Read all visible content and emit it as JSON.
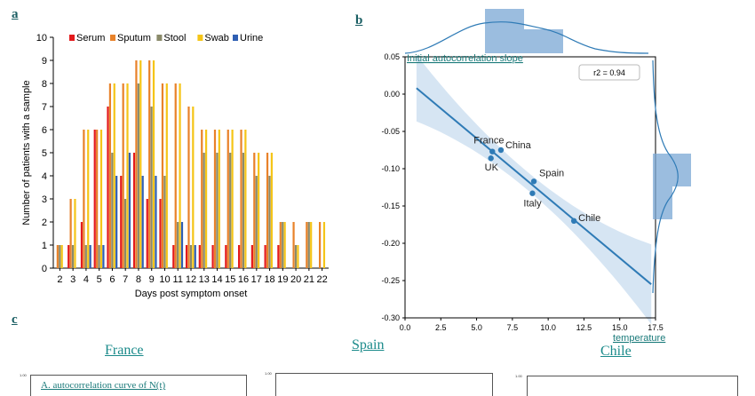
{
  "labels": {
    "a": "a",
    "b": "b",
    "c": "c"
  },
  "panel_c": {
    "countries": [
      "France",
      "Spain",
      "Chile"
    ],
    "subplot_title": "A. autocorrelation curve of N(t)",
    "subplot_tick": "1.00"
  },
  "chart_data": [
    {
      "type": "bar",
      "panel": "a",
      "xlabel": "Days post symptom onset",
      "ylabel": "Number of patients with a sample",
      "ylim": [
        0,
        10
      ],
      "yticks": [
        "0",
        "1",
        "2",
        "3",
        "4",
        "5",
        "6",
        "7",
        "8",
        "9",
        "10"
      ],
      "legend_position": "top",
      "categories": [
        "2",
        "3",
        "4",
        "5",
        "6",
        "7",
        "8",
        "9",
        "10",
        "11",
        "12",
        "13",
        "14",
        "15",
        "16",
        "17",
        "18",
        "19",
        "20",
        "21",
        "22"
      ],
      "series": [
        {
          "name": "Serum",
          "color": "#e31a1c",
          "values": [
            0,
            1,
            2,
            6,
            7,
            4,
            5,
            3,
            3,
            1,
            1,
            1,
            1,
            1,
            1,
            1,
            1,
            1,
            0,
            0,
            0
          ]
        },
        {
          "name": "Sputum",
          "color": "#e8822a",
          "values": [
            1,
            3,
            6,
            6,
            8,
            8,
            9,
            9,
            8,
            8,
            7,
            6,
            6,
            6,
            6,
            5,
            5,
            2,
            2,
            2,
            2
          ]
        },
        {
          "name": "Stool",
          "color": "#8a8a6a",
          "values": [
            1,
            1,
            1,
            1,
            5,
            3,
            8,
            7,
            4,
            2,
            1,
            5,
            5,
            5,
            5,
            4,
            4,
            2,
            1,
            2,
            0
          ]
        },
        {
          "name": "Swab",
          "color": "#f5c518",
          "values": [
            1,
            3,
            6,
            6,
            8,
            8,
            9,
            9,
            8,
            8,
            7,
            6,
            6,
            6,
            6,
            5,
            5,
            2,
            1,
            2,
            2
          ]
        },
        {
          "name": "Urine",
          "color": "#2f5fb3",
          "values": [
            0,
            0,
            1,
            1,
            4,
            5,
            4,
            4,
            0,
            2,
            1,
            0,
            0,
            0,
            0,
            0,
            0,
            0,
            0,
            0,
            0
          ]
        }
      ]
    },
    {
      "type": "scatter",
      "panel": "b",
      "title": "Initial autocorrelation slope",
      "xlabel": "temperature",
      "xlim": [
        0,
        17.5
      ],
      "ylim": [
        -0.3,
        0.05
      ],
      "xticks": [
        "0.0",
        "2.5",
        "5.0",
        "7.5",
        "10.0",
        "12.5",
        "15.0",
        "17.5"
      ],
      "yticks": [
        "0.05",
        "0.00",
        "-0.05",
        "-0.10",
        "-0.15",
        "-0.20",
        "-0.25",
        "-0.30"
      ],
      "annotation": "r2 = 0.94",
      "points": [
        {
          "label": "France",
          "x": 6.1,
          "y": -0.077
        },
        {
          "label": "China",
          "x": 6.7,
          "y": -0.075
        },
        {
          "label": "UK",
          "x": 6.0,
          "y": -0.086
        },
        {
          "label": "Spain",
          "x": 9.0,
          "y": -0.117
        },
        {
          "label": "Italy",
          "x": 8.9,
          "y": -0.133
        },
        {
          "label": "Chile",
          "x": 11.8,
          "y": -0.17
        }
      ],
      "regression": {
        "x0": 0.8,
        "y0": 0.008,
        "x1": 17.2,
        "y1": -0.255
      }
    }
  ]
}
